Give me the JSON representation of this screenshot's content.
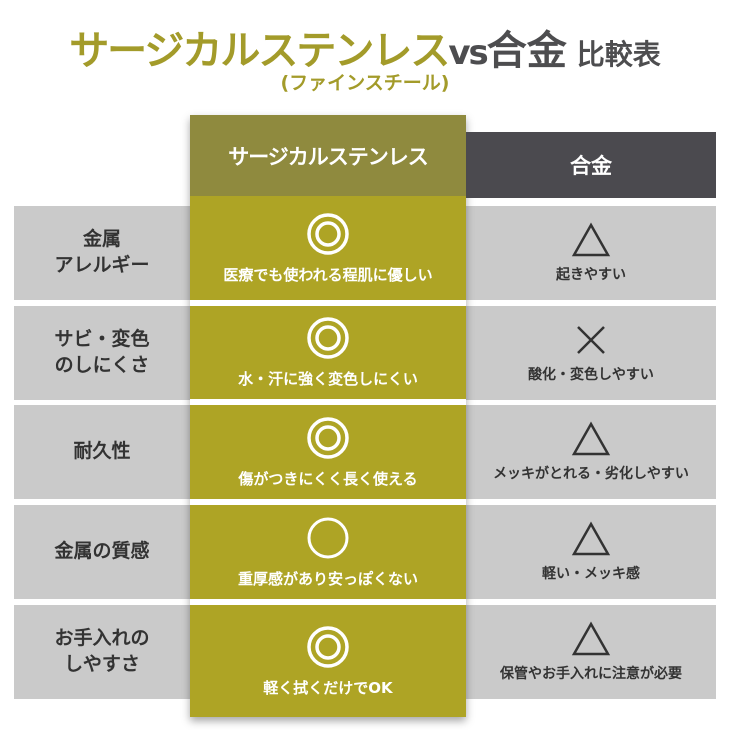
{
  "title": {
    "main": "サージカルステンレス",
    "vs": "vs",
    "alloy": "合金",
    "comparison": "比較表",
    "subtitle": "(ファインスチール)"
  },
  "headers": {
    "stainless": "サージカルステンレス",
    "alloy": "合金"
  },
  "colors": {
    "olive": "#aea425",
    "olive_header": "#8f8a3e",
    "dark_header": "#4b4a4f",
    "row_gray": "#cacaca"
  },
  "rows": [
    {
      "label": "金属\nアレルギー",
      "stainless_mark": "double-circle",
      "stainless_text": "医療でも使われる程肌に優しい",
      "alloy_mark": "triangle",
      "alloy_text": "起きやすい"
    },
    {
      "label": "サビ・変色\nのしにくさ",
      "stainless_mark": "double-circle",
      "stainless_text": "水・汗に強く変色しにくい",
      "alloy_mark": "cross",
      "alloy_text": "酸化・変色しやすい"
    },
    {
      "label": "耐久性",
      "stainless_mark": "double-circle",
      "stainless_text": "傷がつきにくく長く使える",
      "alloy_mark": "triangle",
      "alloy_text": "メッキがとれる・劣化しやすい"
    },
    {
      "label": "金属の質感",
      "stainless_mark": "circle",
      "stainless_text": "重厚感があり安っぽくない",
      "alloy_mark": "triangle",
      "alloy_text": "軽い・メッキ感"
    },
    {
      "label": "お手入れの\nしやすさ",
      "stainless_mark": "double-circle",
      "stainless_text": "軽く拭くだけでOK",
      "alloy_mark": "triangle",
      "alloy_text": "保管やお手入れに注意が必要"
    }
  ]
}
